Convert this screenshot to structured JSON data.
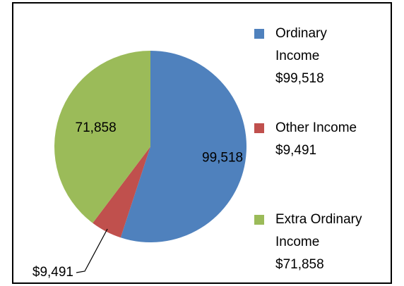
{
  "chart_data": {
    "type": "pie",
    "categories": [
      "Ordinary Income",
      "Other Income",
      "Extra Ordinary Income"
    ],
    "values": [
      99518,
      9491,
      71858
    ],
    "value_labels": [
      "99,518",
      "$9,491",
      "71,858"
    ],
    "legend_value_labels": [
      "$99,518",
      "$9,491",
      "$71,858"
    ],
    "colors": [
      "#4f81bd",
      "#c0504d",
      "#9bbb59"
    ],
    "legend": "right"
  }
}
